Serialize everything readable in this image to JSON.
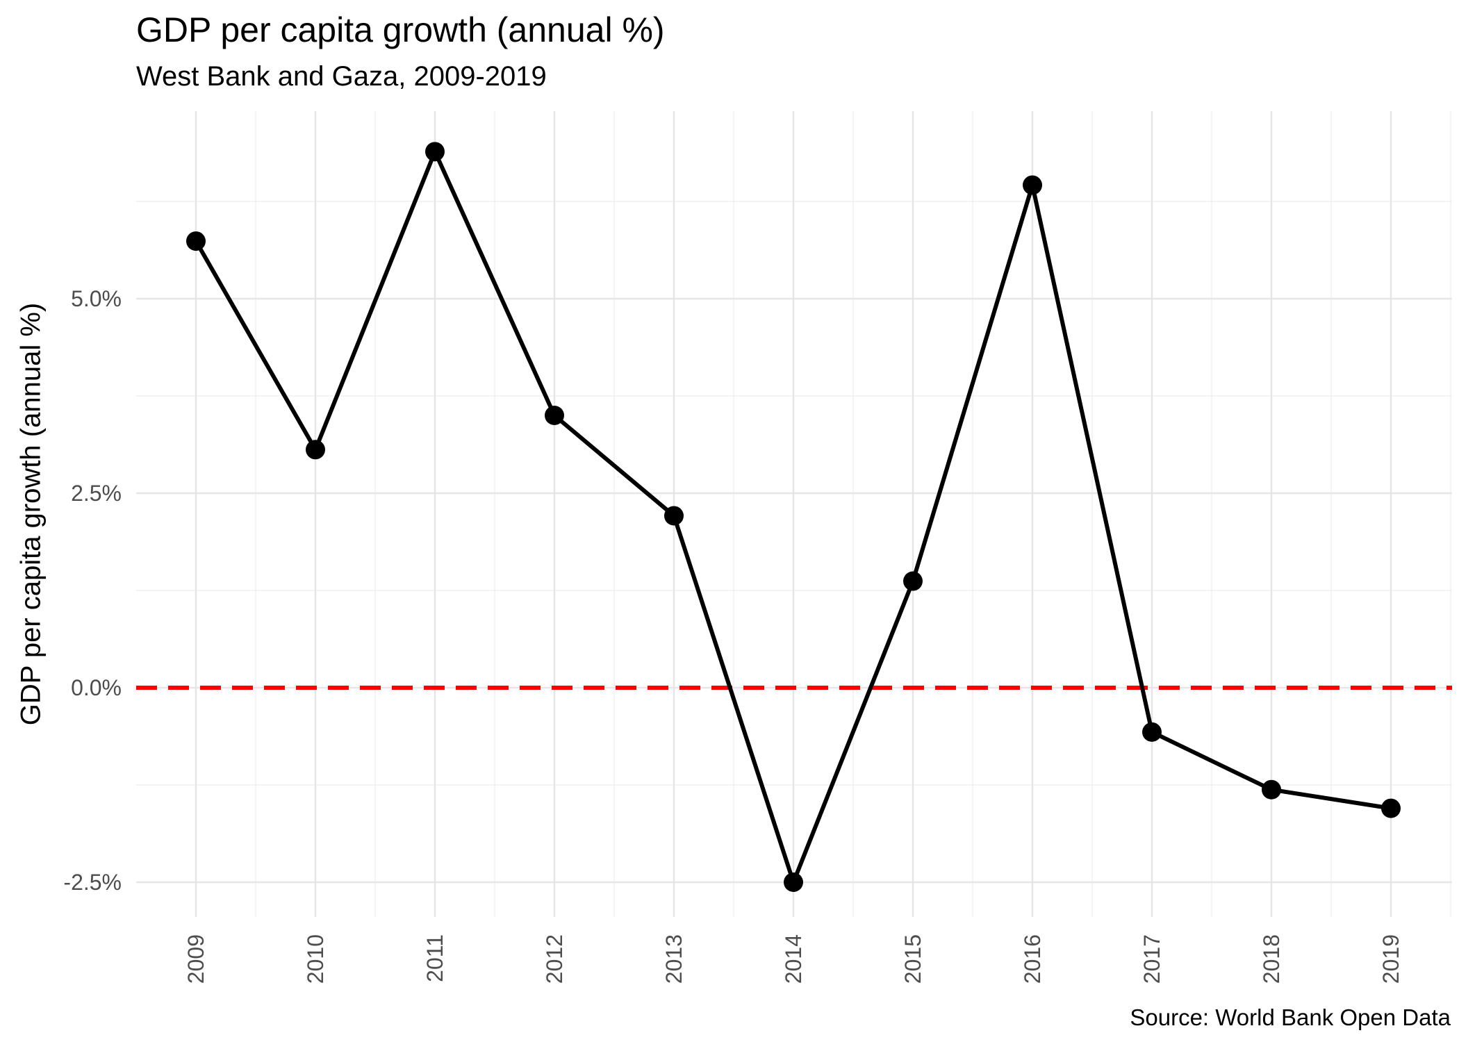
{
  "chart_data": {
    "type": "line",
    "title": "GDP per capita growth (annual %)",
    "subtitle": "West Bank and Gaza, 2009-2019",
    "ylabel": "GDP per capita growth (annual %)",
    "xlabel": "",
    "caption": "Source: World Bank Open Data",
    "x": [
      "2009",
      "2010",
      "2011",
      "2012",
      "2013",
      "2014",
      "2015",
      "2016",
      "2017",
      "2018",
      "2019"
    ],
    "values": [
      5.74,
      3.06,
      6.89,
      3.5,
      2.21,
      -2.5,
      1.37,
      6.46,
      -0.57,
      -1.31,
      -1.55
    ],
    "y_ticks": [
      -2.5,
      0.0,
      2.5,
      5.0
    ],
    "y_tick_labels": [
      "-2.5%",
      "0.0%",
      "2.5%",
      "5.0%"
    ],
    "ylim": [
      -2.95,
      7.35
    ],
    "reference_line": {
      "y": 0,
      "style": "dashed",
      "color": "#ff0000"
    },
    "line_color": "#000000",
    "grid": true,
    "legend": "none"
  }
}
